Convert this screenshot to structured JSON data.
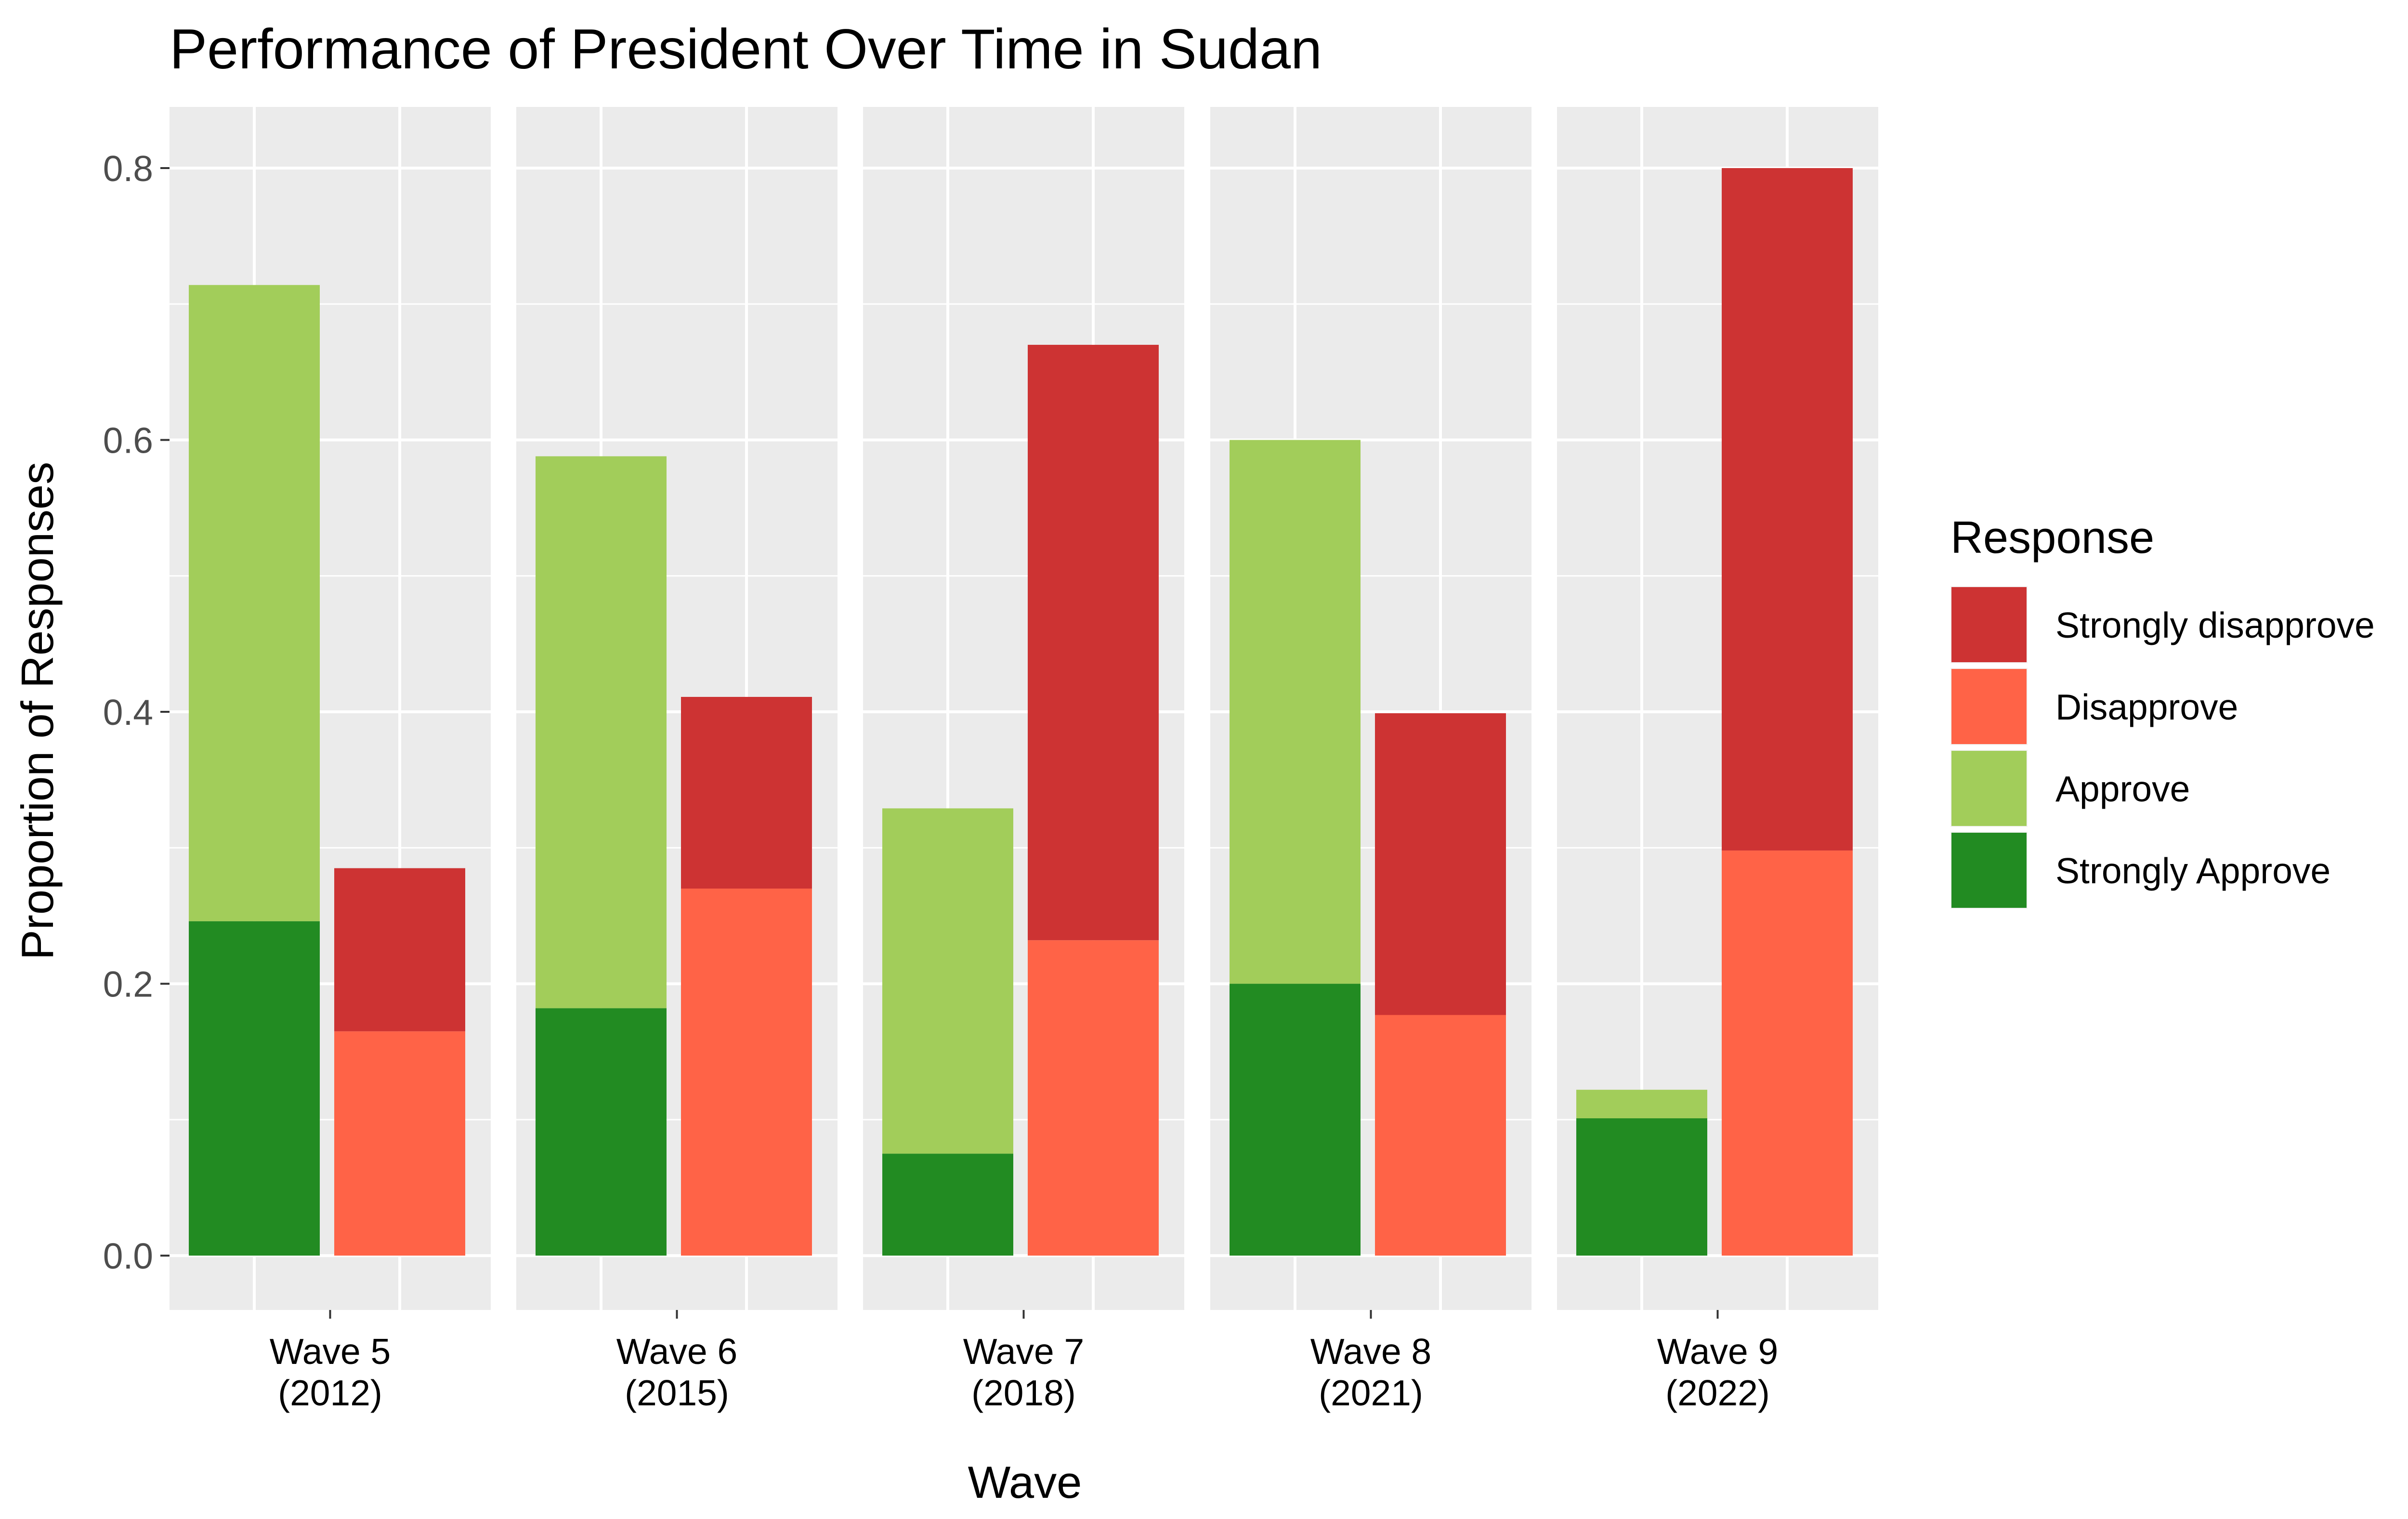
{
  "chart_data": {
    "type": "bar",
    "title": "Performance of President Over Time in Sudan",
    "xlabel": "Wave",
    "ylabel": "Proportion of Responses",
    "ylim": [
      -0.04,
      0.845
    ],
    "y_ticks": [
      "0.0",
      "0.2",
      "0.4",
      "0.6",
      "0.8"
    ],
    "y_tick_values": [
      0,
      0.2,
      0.4,
      0.6,
      0.8
    ],
    "grid": true,
    "legend": {
      "title": "Response",
      "position": "right",
      "entries": [
        {
          "name": "Strongly disapprove",
          "color": "#cd3333"
        },
        {
          "name": "Disapprove",
          "color": "#ff6347"
        },
        {
          "name": "Approve",
          "color": "#a2cd5a"
        },
        {
          "name": "Strongly Approve",
          "color": "#228b22"
        }
      ]
    },
    "panels": [
      {
        "label_line1": "Wave 5",
        "label_line2": "(2012)",
        "approve_bar": {
          "strongly_approve": 0.246,
          "approve": 0.468
        },
        "disapprove_bar": {
          "disapprove": 0.165,
          "strongly_disapprove": 0.12
        }
      },
      {
        "label_line1": "Wave 6",
        "label_line2": "(2015)",
        "approve_bar": {
          "strongly_approve": 0.182,
          "approve": 0.406
        },
        "disapprove_bar": {
          "disapprove": 0.27,
          "strongly_disapprove": 0.141
        }
      },
      {
        "label_line1": "Wave 7",
        "label_line2": "(2018)",
        "approve_bar": {
          "strongly_approve": 0.075,
          "approve": 0.254
        },
        "disapprove_bar": {
          "disapprove": 0.232,
          "strongly_disapprove": 0.438
        }
      },
      {
        "label_line1": "Wave 8",
        "label_line2": "(2021)",
        "approve_bar": {
          "strongly_approve": 0.2,
          "approve": 0.4
        },
        "disapprove_bar": {
          "disapprove": 0.177,
          "strongly_disapprove": 0.222
        }
      },
      {
        "label_line1": "Wave 9",
        "label_line2": "(2022)",
        "approve_bar": {
          "strongly_approve": 0.101,
          "approve": 0.021
        },
        "disapprove_bar": {
          "disapprove": 0.298,
          "strongly_disapprove": 0.502
        }
      }
    ]
  }
}
